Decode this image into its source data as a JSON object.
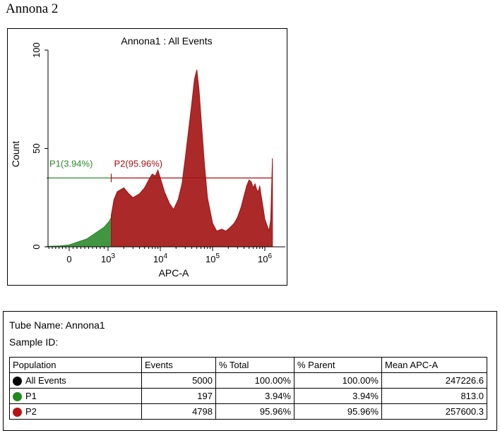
{
  "figure_label": "Annona 2",
  "chart_data": {
    "type": "area",
    "title": "Annona1 : All Events",
    "xlabel": "APC-A",
    "ylabel": "Count",
    "x_scale": "biexponential",
    "x_ticks": [
      {
        "value": 0,
        "base": "0",
        "exp": ""
      },
      {
        "value": 1000,
        "base": "10",
        "exp": "3"
      },
      {
        "value": 10000,
        "base": "10",
        "exp": "4"
      },
      {
        "value": 100000,
        "base": "10",
        "exp": "5"
      },
      {
        "value": 1000000,
        "base": "10",
        "exp": "6"
      }
    ],
    "y_ticks": [
      0,
      50,
      100
    ],
    "ylim": [
      0,
      100
    ],
    "series": [
      {
        "name": "P1",
        "color": "#2e8b2e",
        "fill": "#2e8b2e",
        "x": [
          -2000,
          -800,
          0,
          150,
          300,
          450,
          600,
          750,
          900,
          1050,
          1150
        ],
        "y": [
          0.2,
          0.5,
          1,
          2,
          3,
          4,
          6,
          8,
          10,
          13,
          15
        ]
      },
      {
        "name": "P2",
        "color": "#a31212",
        "fill": "#a31212",
        "x": [
          1150,
          1300,
          1500,
          2000,
          2500,
          3000,
          4000,
          5000,
          6000,
          7000,
          8000,
          9000,
          10000,
          12000,
          15000,
          18000,
          22000,
          26000,
          30000,
          35000,
          40000,
          45000,
          50000,
          55000,
          60000,
          70000,
          80000,
          100000,
          120000,
          150000,
          180000,
          220000,
          260000,
          300000,
          350000,
          400000,
          450000,
          500000,
          550000,
          600000,
          650000,
          700000,
          750000,
          800000,
          850000,
          900000,
          950000,
          1000000,
          1100000,
          1200000,
          1300000,
          1400000
        ],
        "y": [
          16,
          24,
          28,
          30,
          27,
          25,
          27,
          30,
          34,
          37,
          36,
          39,
          35,
          28,
          22,
          19,
          24,
          32,
          45,
          60,
          73,
          85,
          90,
          80,
          66,
          42,
          25,
          12,
          8,
          9,
          8,
          10,
          12,
          15,
          20,
          26,
          31,
          34,
          33,
          30,
          32,
          29,
          28,
          31,
          26,
          22,
          18,
          14,
          11,
          8,
          14,
          45
        ]
      }
    ],
    "gates": [
      {
        "name": "P1",
        "label": "P1(3.94%)",
        "x_start": -2000,
        "x_end": 1150,
        "y": 35,
        "color": "#2e8b2e"
      },
      {
        "name": "P2",
        "label": "P2(95.96%)",
        "x_start": 1150,
        "x_end": 1400000,
        "y": 35,
        "color": "#a31212"
      }
    ]
  },
  "info": {
    "tube_label": "Tube Name: Annona1",
    "sample_label": "Sample ID:",
    "table": {
      "headers": [
        "Population",
        "Events",
        "% Total",
        "% Parent",
        "Mean APC-A"
      ],
      "rows": [
        {
          "name": "All Events",
          "color": "#000000",
          "events": "5000",
          "total": "100.00%",
          "parent": "100.00%",
          "mean": "247226.6"
        },
        {
          "name": "P1",
          "color": "#1e8a1e",
          "events": "197",
          "total": "3.94%",
          "parent": "3.94%",
          "mean": "813.0"
        },
        {
          "name": "P2",
          "color": "#b81414",
          "events": "4798",
          "total": "95.96%",
          "parent": "95.96%",
          "mean": "257600.3"
        }
      ]
    }
  }
}
